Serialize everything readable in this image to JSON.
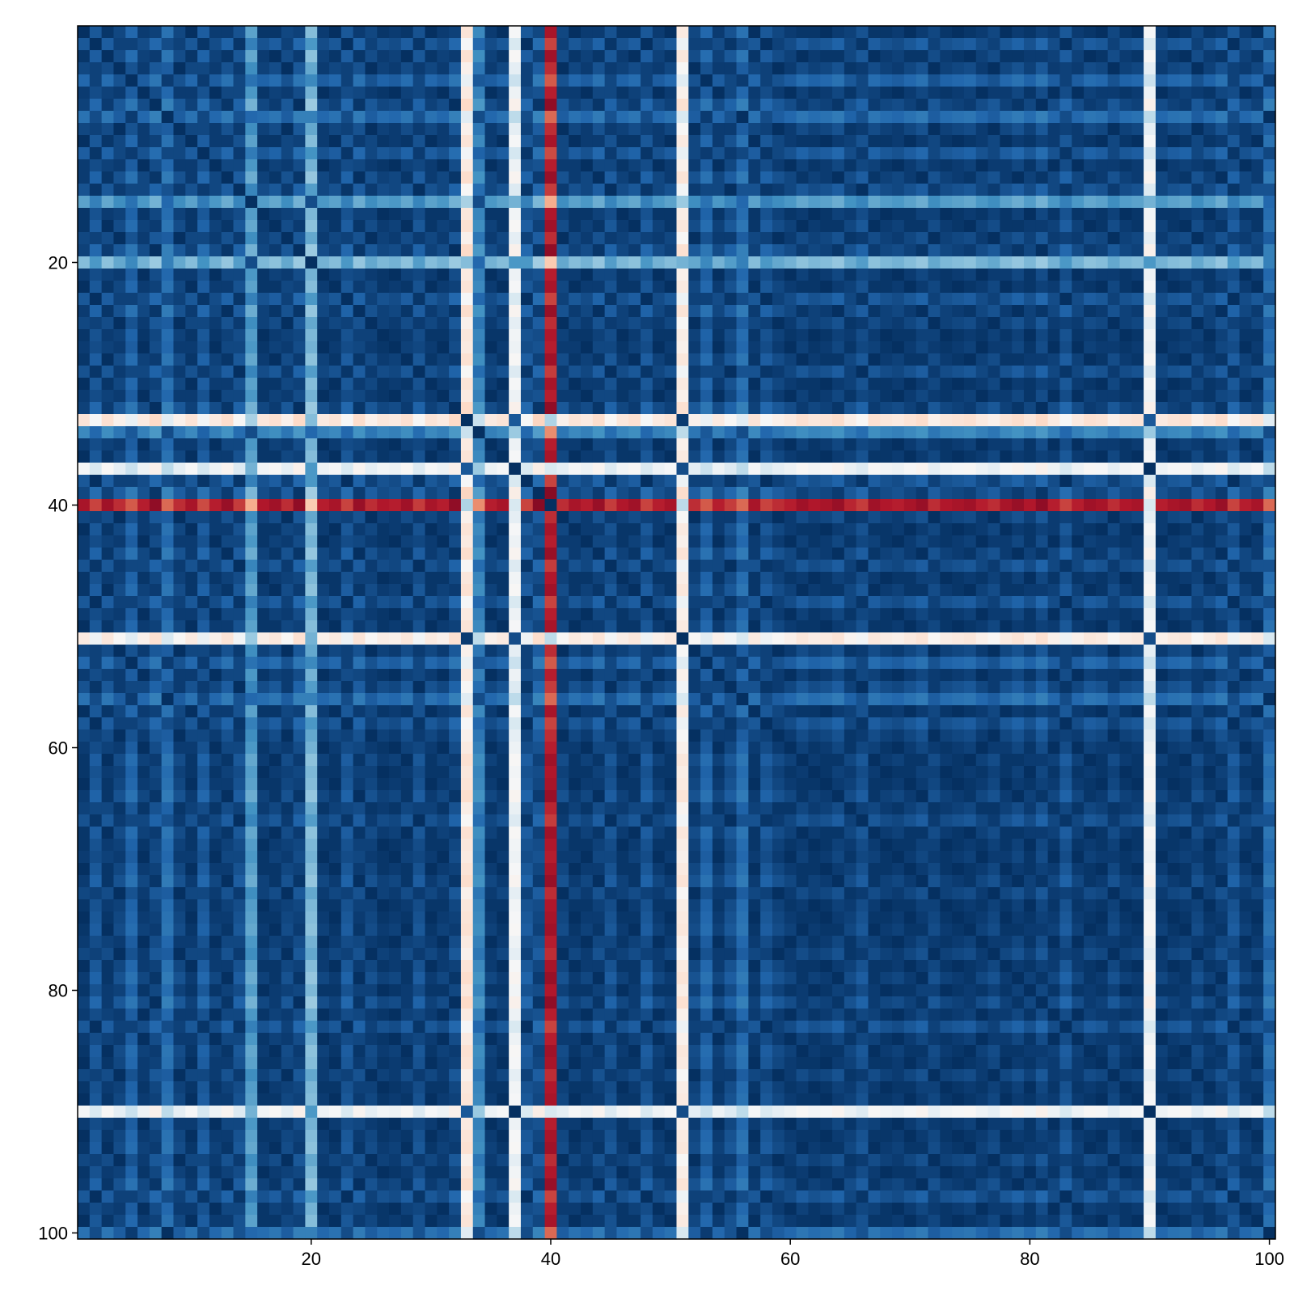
{
  "chart_data": {
    "type": "heatmap",
    "title": "",
    "xlabel": "",
    "ylabel": "",
    "n_rows": 100,
    "n_cols": 100,
    "x_range": [
      1,
      100
    ],
    "y_range": [
      1,
      100
    ],
    "y_axis_direction": "top-to-bottom",
    "x_ticks": [
      {
        "value": 20,
        "label": "20"
      },
      {
        "value": 40,
        "label": "40"
      },
      {
        "value": 60,
        "label": "60"
      },
      {
        "value": 80,
        "label": "80"
      },
      {
        "value": 100,
        "label": "100"
      }
    ],
    "y_ticks": [
      {
        "value": 20,
        "label": "20"
      },
      {
        "value": 40,
        "label": "40"
      },
      {
        "value": 60,
        "label": "60"
      },
      {
        "value": 80,
        "label": "80"
      },
      {
        "value": 100,
        "label": "100"
      }
    ],
    "colormap": "RdBu reversed (dark blue = low, red = high)",
    "colormap_stops": [
      "#053061",
      "#2166ac",
      "#4393c3",
      "#92c5de",
      "#d1e5f0",
      "#f7f7f7",
      "#fddbc7",
      "#f4a582",
      "#d6604d",
      "#b2182b",
      "#67001f"
    ],
    "symmetric": true,
    "diagonal_value": 0,
    "structure_note": "symmetric distance-like matrix; element-wise value approximated as min(1, |f_i - f_j|) with per-index feature f",
    "feature_by_index": [
      0.08,
      0.15,
      0.07,
      0.12,
      0.18,
      0.1,
      0.05,
      0.2,
      0.12,
      0.08,
      0.16,
      0.1,
      0.06,
      0.14,
      0.3,
      0.09,
      0.07,
      0.12,
      0.05,
      0.35,
      0.1,
      0.08,
      0.15,
      0.06,
      0.12,
      0.09,
      0.1,
      0.07,
      0.14,
      0.08,
      0.1,
      0.05,
      0.62,
      0.25,
      0.1,
      0.08,
      0.55,
      0.15,
      0.04,
      0.95,
      0.12,
      0.08,
      0.1,
      0.06,
      0.14,
      0.09,
      0.07,
      0.15,
      0.1,
      0.08,
      0.6,
      0.12,
      0.18,
      0.1,
      0.14,
      0.2,
      0.08,
      0.15,
      0.12,
      0.1,
      0.07,
      0.09,
      0.08,
      0.06,
      0.11,
      0.14,
      0.07,
      0.09,
      0.1,
      0.08,
      0.06,
      0.12,
      0.09,
      0.08,
      0.07,
      0.1,
      0.12,
      0.08,
      0.06,
      0.09,
      0.05,
      0.1,
      0.15,
      0.1,
      0.07,
      0.08,
      0.12,
      0.09,
      0.08,
      0.55,
      0.1,
      0.08,
      0.07,
      0.12,
      0.09,
      0.06,
      0.15,
      0.1,
      0.08,
      0.2
    ],
    "notable_bands": [
      {
        "index": 40,
        "description": "strongest band: red (high values) across most of row and column 40"
      },
      {
        "index": 33,
        "description": "salmon/light band"
      },
      {
        "index": 37,
        "description": "light band"
      },
      {
        "index": 51,
        "description": "light/salmon band"
      },
      {
        "index": 90,
        "description": "light/salmon band"
      }
    ]
  }
}
